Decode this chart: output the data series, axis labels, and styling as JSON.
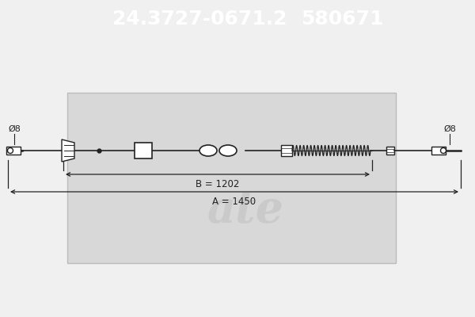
{
  "header_text1": "24.3727-0671.2",
  "header_text2": "580671",
  "header_bg_color": "#0a0aee",
  "header_text_color": "#ffffff",
  "header_font_size": 18,
  "bg_color": "#f0f0f0",
  "drawing_bg": "#e2e2e2",
  "cable_color": "#222222",
  "dim_color": "#222222",
  "label_B": "B = 1202",
  "label_A": "A = 1450",
  "label_left": "Ø8",
  "label_right": "Ø8",
  "ate_logo_color": "#cccccc",
  "border_color": "#999999",
  "inner_box_color": "#d8d8d8",
  "inner_box_edge": "#bbbbbb"
}
